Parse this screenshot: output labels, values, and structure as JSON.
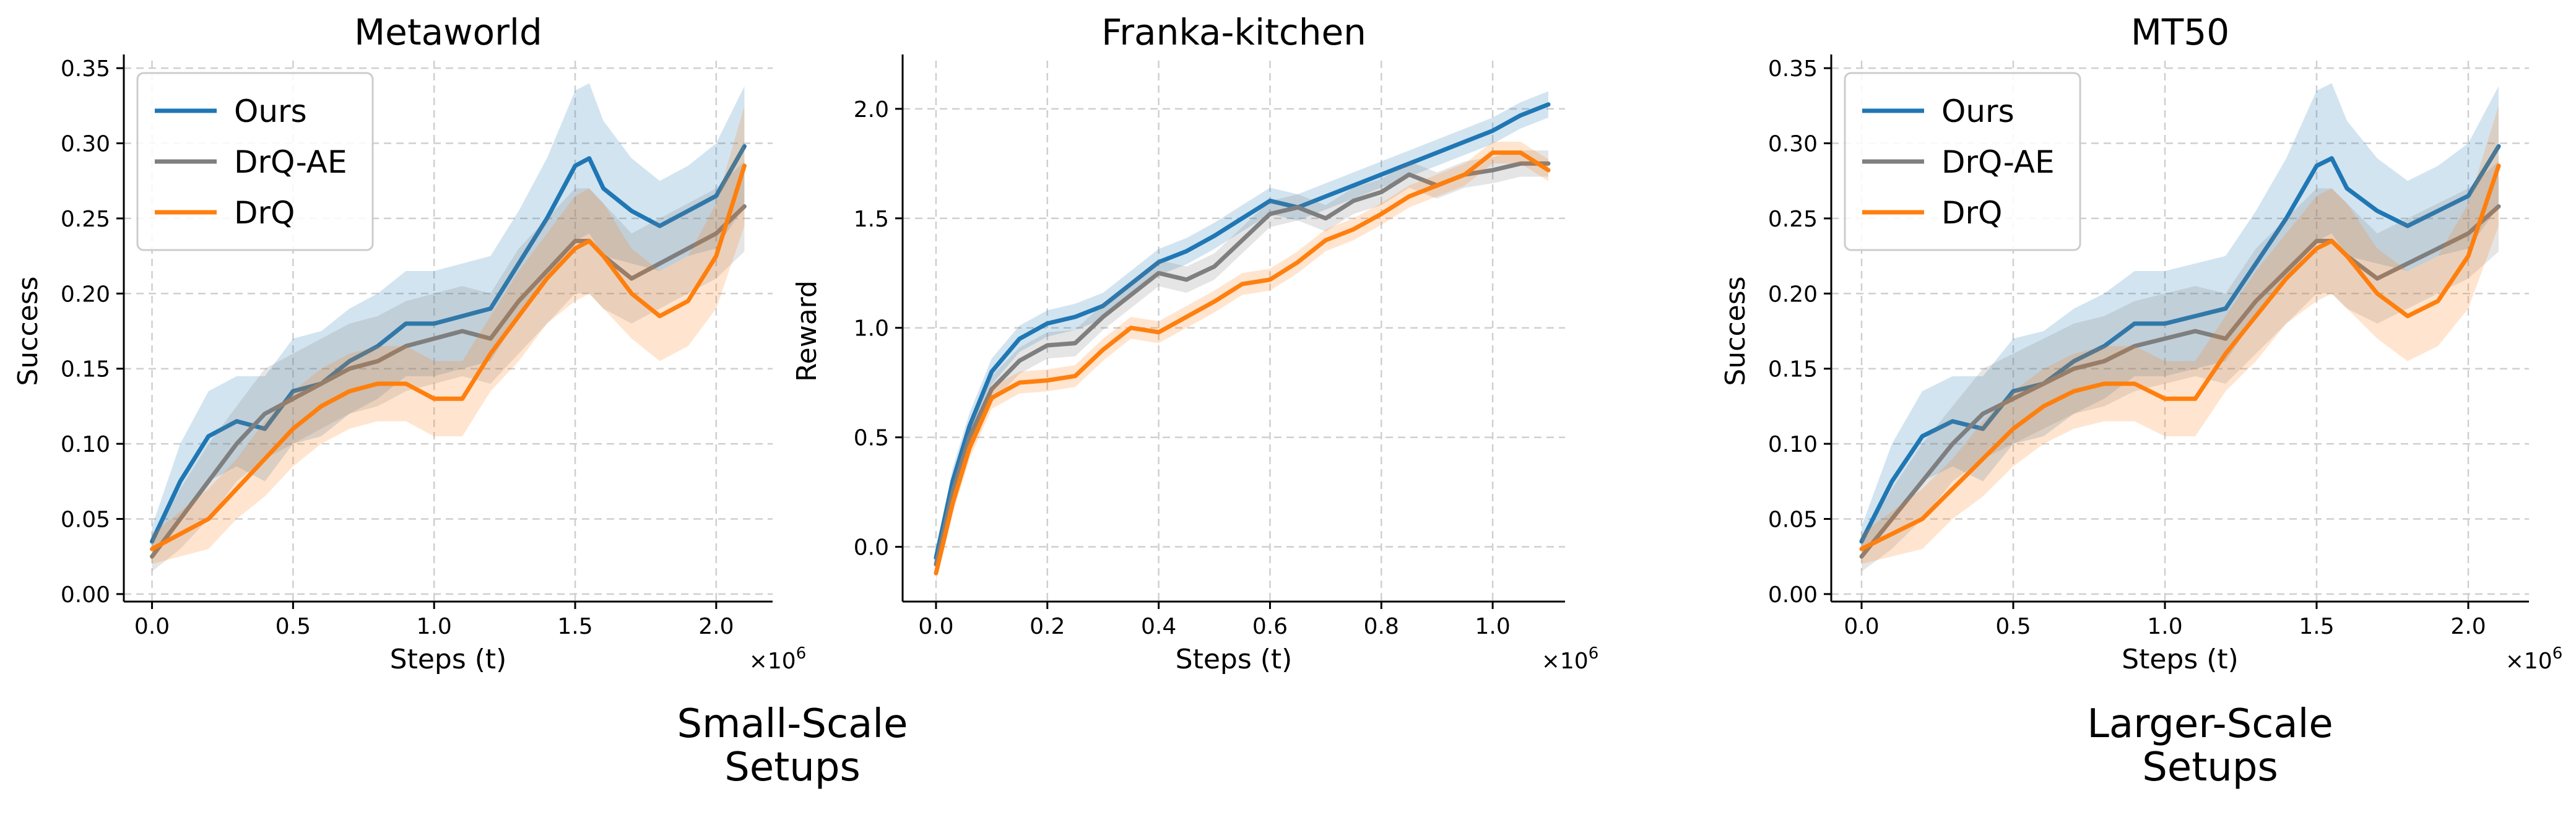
{
  "captions": {
    "small": [
      "Small-Scale",
      "Setups"
    ],
    "large": [
      "Larger-Scale",
      "Setups"
    ]
  },
  "colors": {
    "Ours": "#1f77b4",
    "DrQ-AE": "#7f7f7f",
    "DrQ": "#ff7f0e"
  },
  "chart_data": [
    {
      "type": "line",
      "title": "Metaworld",
      "xlabel": "Steps (t)",
      "ylabel": "Success",
      "x_multiplier": "×10^6",
      "xlim": [
        -0.1,
        2.2
      ],
      "ylim": [
        -0.005,
        0.355
      ],
      "xticks": [
        0.0,
        0.5,
        1.0,
        1.5,
        2.0
      ],
      "xtick_labels": [
        "0.0",
        "0.5",
        "1.0",
        "1.5",
        "2.0"
      ],
      "yticks": [
        0.0,
        0.05,
        0.1,
        0.15,
        0.2,
        0.25,
        0.3,
        0.35
      ],
      "ytick_labels": [
        "0.00",
        "0.05",
        "0.10",
        "0.15",
        "0.20",
        "0.25",
        "0.30",
        "0.35"
      ],
      "grid": true,
      "legend": "top-left",
      "x": [
        0,
        0.1,
        0.2,
        0.3,
        0.4,
        0.5,
        0.6,
        0.7,
        0.8,
        0.9,
        1.0,
        1.1,
        1.2,
        1.3,
        1.4,
        1.5,
        1.55,
        1.6,
        1.7,
        1.8,
        1.9,
        2.0,
        2.1
      ],
      "series": [
        {
          "name": "Ours",
          "values": [
            0.035,
            0.075,
            0.105,
            0.115,
            0.11,
            0.135,
            0.14,
            0.155,
            0.165,
            0.18,
            0.18,
            0.185,
            0.19,
            0.22,
            0.25,
            0.285,
            0.29,
            0.27,
            0.255,
            0.245,
            0.255,
            0.265,
            0.298
          ],
          "spread": [
            0.01,
            0.025,
            0.03,
            0.03,
            0.035,
            0.035,
            0.035,
            0.035,
            0.035,
            0.035,
            0.035,
            0.035,
            0.035,
            0.035,
            0.04,
            0.05,
            0.05,
            0.045,
            0.035,
            0.03,
            0.03,
            0.035,
            0.04
          ]
        },
        {
          "name": "DrQ-AE",
          "values": [
            0.025,
            0.05,
            0.075,
            0.1,
            0.12,
            0.13,
            0.14,
            0.15,
            0.155,
            0.165,
            0.17,
            0.175,
            0.17,
            0.195,
            0.215,
            0.235,
            0.235,
            0.225,
            0.21,
            0.22,
            0.23,
            0.24,
            0.258
          ],
          "spread": [
            0.01,
            0.02,
            0.025,
            0.025,
            0.03,
            0.03,
            0.03,
            0.03,
            0.03,
            0.03,
            0.03,
            0.03,
            0.03,
            0.035,
            0.035,
            0.035,
            0.035,
            0.035,
            0.03,
            0.03,
            0.03,
            0.03,
            0.03
          ]
        },
        {
          "name": "DrQ",
          "values": [
            0.03,
            0.04,
            0.05,
            0.07,
            0.09,
            0.11,
            0.125,
            0.135,
            0.14,
            0.14,
            0.13,
            0.13,
            0.16,
            0.185,
            0.21,
            0.23,
            0.235,
            0.225,
            0.2,
            0.185,
            0.195,
            0.225,
            0.285
          ],
          "spread": [
            0.01,
            0.015,
            0.02,
            0.02,
            0.025,
            0.025,
            0.025,
            0.025,
            0.025,
            0.025,
            0.025,
            0.025,
            0.025,
            0.03,
            0.03,
            0.035,
            0.035,
            0.035,
            0.03,
            0.03,
            0.03,
            0.035,
            0.04
          ]
        }
      ]
    },
    {
      "type": "line",
      "title": "Franka-kitchen",
      "xlabel": "Steps (t)",
      "ylabel": "Reward",
      "x_multiplier": "×10^6",
      "xlim": [
        -0.06,
        1.13
      ],
      "ylim": [
        -0.25,
        2.22
      ],
      "xticks": [
        0.0,
        0.2,
        0.4,
        0.6,
        0.8,
        1.0
      ],
      "xtick_labels": [
        "0.0",
        "0.2",
        "0.4",
        "0.6",
        "0.8",
        "1.0"
      ],
      "yticks": [
        0.0,
        0.5,
        1.0,
        1.5,
        2.0
      ],
      "ytick_labels": [
        "0.0",
        "0.5",
        "1.0",
        "1.5",
        "2.0"
      ],
      "grid": true,
      "legend": "none",
      "x": [
        0,
        0.03,
        0.06,
        0.1,
        0.15,
        0.2,
        0.25,
        0.3,
        0.35,
        0.4,
        0.45,
        0.5,
        0.55,
        0.6,
        0.65,
        0.7,
        0.75,
        0.8,
        0.85,
        0.9,
        0.95,
        1.0,
        1.05,
        1.1
      ],
      "series": [
        {
          "name": "Ours",
          "values": [
            -0.05,
            0.3,
            0.55,
            0.8,
            0.95,
            1.02,
            1.05,
            1.1,
            1.2,
            1.3,
            1.35,
            1.42,
            1.5,
            1.58,
            1.55,
            1.6,
            1.65,
            1.7,
            1.75,
            1.8,
            1.85,
            1.9,
            1.97,
            2.02
          ],
          "spread": [
            0.04,
            0.06,
            0.06,
            0.06,
            0.06,
            0.06,
            0.06,
            0.06,
            0.06,
            0.06,
            0.06,
            0.06,
            0.06,
            0.06,
            0.06,
            0.06,
            0.06,
            0.06,
            0.06,
            0.06,
            0.06,
            0.06,
            0.06,
            0.06
          ]
        },
        {
          "name": "DrQ-AE",
          "values": [
            -0.08,
            0.25,
            0.5,
            0.72,
            0.85,
            0.92,
            0.93,
            1.05,
            1.15,
            1.25,
            1.22,
            1.28,
            1.4,
            1.52,
            1.55,
            1.5,
            1.58,
            1.62,
            1.7,
            1.65,
            1.7,
            1.72,
            1.75,
            1.75
          ],
          "spread": [
            0.04,
            0.06,
            0.06,
            0.06,
            0.06,
            0.06,
            0.06,
            0.06,
            0.06,
            0.06,
            0.06,
            0.06,
            0.06,
            0.06,
            0.06,
            0.06,
            0.06,
            0.06,
            0.06,
            0.06,
            0.06,
            0.06,
            0.06,
            0.06
          ]
        },
        {
          "name": "DrQ",
          "values": [
            -0.12,
            0.2,
            0.45,
            0.68,
            0.75,
            0.76,
            0.78,
            0.9,
            1.0,
            0.98,
            1.05,
            1.12,
            1.2,
            1.22,
            1.3,
            1.4,
            1.45,
            1.52,
            1.6,
            1.65,
            1.7,
            1.8,
            1.8,
            1.72
          ],
          "spread": [
            0.04,
            0.05,
            0.05,
            0.05,
            0.05,
            0.05,
            0.05,
            0.05,
            0.05,
            0.05,
            0.05,
            0.05,
            0.05,
            0.05,
            0.05,
            0.05,
            0.05,
            0.05,
            0.05,
            0.05,
            0.05,
            0.05,
            0.05,
            0.05
          ]
        }
      ]
    },
    {
      "type": "line",
      "title": "MT50",
      "xlabel": "Steps (t)",
      "ylabel": "Success",
      "x_multiplier": "×10^6",
      "xlim": [
        -0.1,
        2.2
      ],
      "ylim": [
        -0.005,
        0.355
      ],
      "xticks": [
        0.0,
        0.5,
        1.0,
        1.5,
        2.0
      ],
      "xtick_labels": [
        "0.0",
        "0.5",
        "1.0",
        "1.5",
        "2.0"
      ],
      "yticks": [
        0.0,
        0.05,
        0.1,
        0.15,
        0.2,
        0.25,
        0.3,
        0.35
      ],
      "ytick_labels": [
        "0.00",
        "0.05",
        "0.10",
        "0.15",
        "0.20",
        "0.25",
        "0.30",
        "0.35"
      ],
      "grid": true,
      "legend": "top-left",
      "x": [
        0,
        0.1,
        0.2,
        0.3,
        0.4,
        0.5,
        0.6,
        0.7,
        0.8,
        0.9,
        1.0,
        1.1,
        1.2,
        1.3,
        1.4,
        1.5,
        1.55,
        1.6,
        1.7,
        1.8,
        1.9,
        2.0,
        2.1
      ],
      "series": [
        {
          "name": "Ours",
          "values": [
            0.035,
            0.075,
            0.105,
            0.115,
            0.11,
            0.135,
            0.14,
            0.155,
            0.165,
            0.18,
            0.18,
            0.185,
            0.19,
            0.22,
            0.25,
            0.285,
            0.29,
            0.27,
            0.255,
            0.245,
            0.255,
            0.265,
            0.298
          ],
          "spread": [
            0.01,
            0.025,
            0.03,
            0.03,
            0.035,
            0.035,
            0.035,
            0.035,
            0.035,
            0.035,
            0.035,
            0.035,
            0.035,
            0.035,
            0.04,
            0.05,
            0.05,
            0.045,
            0.035,
            0.03,
            0.03,
            0.035,
            0.04
          ]
        },
        {
          "name": "DrQ-AE",
          "values": [
            0.025,
            0.05,
            0.075,
            0.1,
            0.12,
            0.13,
            0.14,
            0.15,
            0.155,
            0.165,
            0.17,
            0.175,
            0.17,
            0.195,
            0.215,
            0.235,
            0.235,
            0.225,
            0.21,
            0.22,
            0.23,
            0.24,
            0.258
          ],
          "spread": [
            0.01,
            0.02,
            0.025,
            0.025,
            0.03,
            0.03,
            0.03,
            0.03,
            0.03,
            0.03,
            0.03,
            0.03,
            0.03,
            0.035,
            0.035,
            0.035,
            0.035,
            0.035,
            0.03,
            0.03,
            0.03,
            0.03,
            0.03
          ]
        },
        {
          "name": "DrQ",
          "values": [
            0.03,
            0.04,
            0.05,
            0.07,
            0.09,
            0.11,
            0.125,
            0.135,
            0.14,
            0.14,
            0.13,
            0.13,
            0.16,
            0.185,
            0.21,
            0.23,
            0.235,
            0.225,
            0.2,
            0.185,
            0.195,
            0.225,
            0.285
          ],
          "spread": [
            0.01,
            0.015,
            0.02,
            0.02,
            0.025,
            0.025,
            0.025,
            0.025,
            0.025,
            0.025,
            0.025,
            0.025,
            0.025,
            0.03,
            0.03,
            0.035,
            0.035,
            0.035,
            0.03,
            0.03,
            0.03,
            0.035,
            0.04
          ]
        }
      ]
    }
  ]
}
